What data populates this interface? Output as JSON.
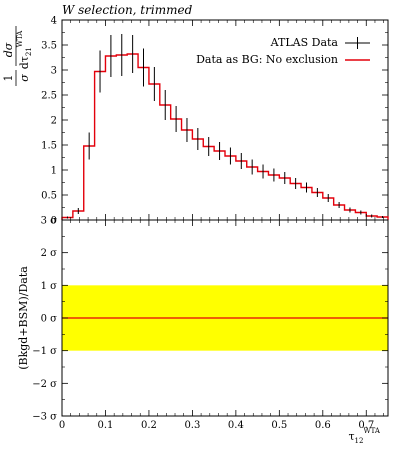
{
  "chart_data": [
    {
      "type": "line",
      "title": "W selection, trimmed",
      "ylabel": "1/σ dσ/dτ21^WTA",
      "ylim": [
        0,
        4
      ],
      "yticks": [
        0,
        0.5,
        1,
        1.5,
        2,
        2.5,
        3,
        3.5,
        4
      ],
      "ytick_labels": [
        "0",
        "0.5",
        "1",
        "1.5",
        "2",
        "2.5",
        "3",
        "3.5",
        "4"
      ],
      "bin_edges": [
        0,
        0.025,
        0.05,
        0.075,
        0.1,
        0.125,
        0.15,
        0.175,
        0.2,
        0.225,
        0.25,
        0.275,
        0.3,
        0.325,
        0.35,
        0.375,
        0.4,
        0.425,
        0.45,
        0.475,
        0.5,
        0.525,
        0.55,
        0.575,
        0.6,
        0.625,
        0.65,
        0.675,
        0.7,
        0.725,
        0.75
      ],
      "series": [
        {
          "name": "ATLAS Data",
          "color": "#000000",
          "x": [
            0.0125,
            0.0375,
            0.0625,
            0.0875,
            0.1125,
            0.1375,
            0.1625,
            0.1875,
            0.2125,
            0.2375,
            0.2625,
            0.2875,
            0.3125,
            0.3375,
            0.3625,
            0.3875,
            0.4125,
            0.4375,
            0.4625,
            0.4875,
            0.5125,
            0.5375,
            0.5625,
            0.5875,
            0.6125,
            0.6375,
            0.6625,
            0.6875,
            0.7125,
            0.7375
          ],
          "y": [
            0.05,
            0.18,
            1.48,
            2.97,
            3.28,
            3.3,
            3.32,
            3.05,
            2.72,
            2.3,
            2.02,
            1.8,
            1.62,
            1.47,
            1.38,
            1.28,
            1.18,
            1.06,
            0.97,
            0.9,
            0.84,
            0.73,
            0.65,
            0.55,
            0.44,
            0.3,
            0.2,
            0.15,
            0.08,
            0.06
          ],
          "err": [
            0.02,
            0.06,
            0.27,
            0.42,
            0.42,
            0.42,
            0.38,
            0.38,
            0.34,
            0.3,
            0.26,
            0.24,
            0.22,
            0.19,
            0.18,
            0.17,
            0.16,
            0.15,
            0.14,
            0.13,
            0.12,
            0.11,
            0.1,
            0.09,
            0.08,
            0.06,
            0.05,
            0.04,
            0.03,
            0.02
          ]
        },
        {
          "name": "Data as BG: No exclusion",
          "color": "#e3000b",
          "y": [
            0.05,
            0.18,
            1.48,
            2.97,
            3.28,
            3.3,
            3.32,
            3.05,
            2.72,
            2.3,
            2.02,
            1.8,
            1.62,
            1.47,
            1.38,
            1.28,
            1.18,
            1.06,
            0.97,
            0.9,
            0.84,
            0.73,
            0.65,
            0.55,
            0.44,
            0.3,
            0.2,
            0.15,
            0.08,
            0.06
          ]
        }
      ]
    },
    {
      "type": "line",
      "ylabel": "(Bkgd+BSM)/Data",
      "xlabel": "τ12^WTA",
      "xlim": [
        0,
        0.75
      ],
      "xticks": [
        0,
        0.1,
        0.2,
        0.3,
        0.4,
        0.5,
        0.6,
        0.7
      ],
      "xtick_labels": [
        "0",
        "0.1",
        "0.2",
        "0.3",
        "0.4",
        "0.5",
        "0.6",
        "0.7"
      ],
      "ylim": [
        -3,
        3
      ],
      "yticks": [
        -3,
        -2,
        -1,
        0,
        1,
        2,
        3
      ],
      "ytick_labels": [
        "−3 σ",
        "−2 σ",
        "−1 σ",
        "0 σ",
        "1 σ",
        "2 σ",
        "3 σ"
      ],
      "band": {
        "from": -1,
        "to": 1,
        "color": "#ffff00"
      },
      "series": [
        {
          "name": "Data as BG: No exclusion",
          "color": "#e3000b",
          "y": [
            0,
            0
          ]
        }
      ]
    }
  ],
  "legend": {
    "placement": "top-right",
    "items": [
      "ATLAS Data",
      "Data as BG: No exclusion"
    ]
  }
}
